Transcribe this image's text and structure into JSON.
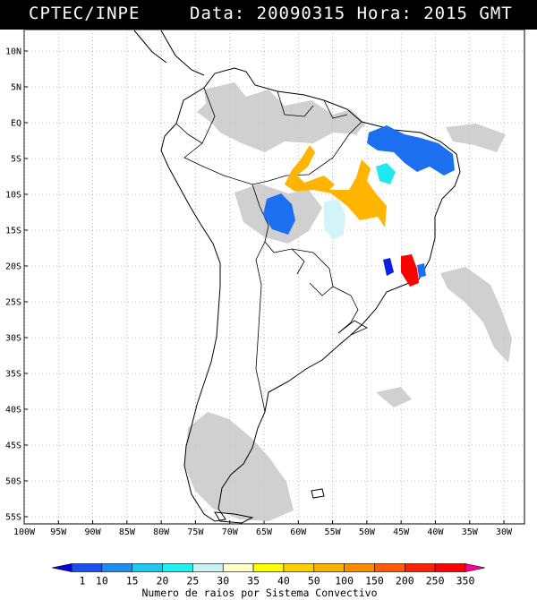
{
  "header": {
    "source": "CPTEC/INPE",
    "datetime": "Data: 20090315 Hora: 2015 GMT"
  },
  "map": {
    "lat_labels": [
      "10N",
      "5N",
      "EQ",
      "5S",
      "10S",
      "15S",
      "20S",
      "25S",
      "30S",
      "35S",
      "40S",
      "45S",
      "50S",
      "55S"
    ],
    "lon_labels": [
      "100W",
      "95W",
      "90W",
      "85W",
      "80W",
      "75W",
      "70W",
      "65W",
      "60W",
      "55W",
      "50W",
      "45W",
      "40W",
      "35W",
      "30W"
    ],
    "lon_range": [
      -100,
      -27
    ],
    "lat_range": [
      -56,
      13
    ],
    "grid": "dotted"
  },
  "colorbar": {
    "labels": [
      "1",
      "10",
      "15",
      "20",
      "25",
      "30",
      "35",
      "40",
      "50",
      "100",
      "150",
      "200",
      "250",
      "350"
    ],
    "colors": [
      "#0a00e0",
      "#1c4ff0",
      "#1e8df2",
      "#1ec8f0",
      "#20f0f0",
      "#c9f2f2",
      "#ffffc8",
      "#ffff00",
      "#ffd000",
      "#ffb000",
      "#ff8c00",
      "#ff5a00",
      "#ff2000",
      "#ff0000",
      "#ff0090"
    ],
    "title": "Numero de raios por Sistema Convectivo"
  },
  "overlay_colors": {
    "cloud_gray": "#c8c8c8",
    "blue": "#1c70f0",
    "dark_blue": "#0a20e0",
    "orange": "#ffb400",
    "light_cyan": "#d2f4f8",
    "cyan": "#20e8f0",
    "red": "#ff0000"
  }
}
